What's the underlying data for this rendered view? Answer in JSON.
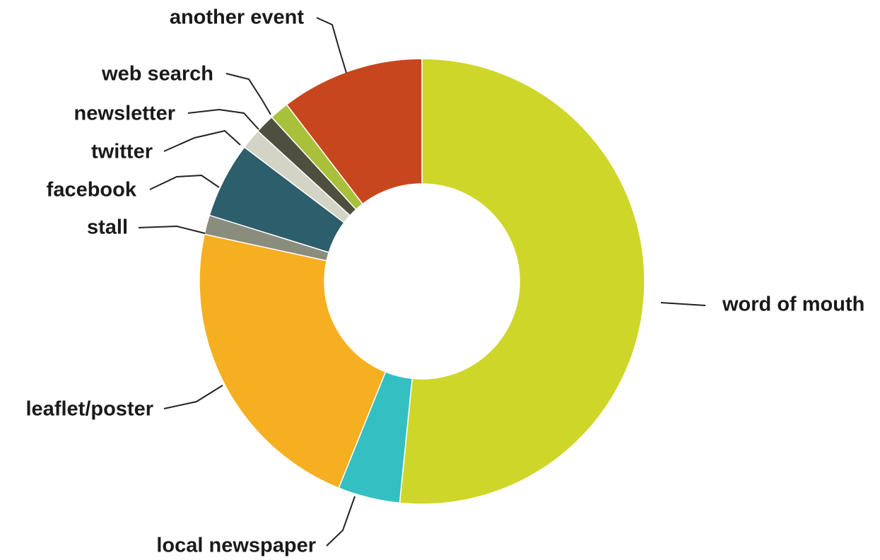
{
  "chart_data": {
    "type": "pie",
    "donut": true,
    "start_angle_deg": 0,
    "direction": "clockwise",
    "slices": [
      {
        "label": "word of mouth",
        "value": 51.6,
        "color": "#CFD62A"
      },
      {
        "label": "local newspaper",
        "value": 4.5,
        "color": "#34BFC2"
      },
      {
        "label": "leaflet/poster",
        "value": 22.3,
        "color": "#F6AF20"
      },
      {
        "label": "stall",
        "value": 1.4,
        "color": "#8A8C7E"
      },
      {
        "label": "facebook",
        "value": 5.5,
        "color": "#2C5E6B"
      },
      {
        "label": "twitter",
        "value": 1.5,
        "color": "#D4D4C6"
      },
      {
        "label": "newsletter",
        "value": 1.4,
        "color": "#4F4F40"
      },
      {
        "label": "web search",
        "value": 1.4,
        "color": "#A9C03A"
      },
      {
        "label": "another event",
        "value": 10.4,
        "color": "#C8461D"
      }
    ],
    "legend": "none",
    "labels": "outside with leader lines"
  }
}
